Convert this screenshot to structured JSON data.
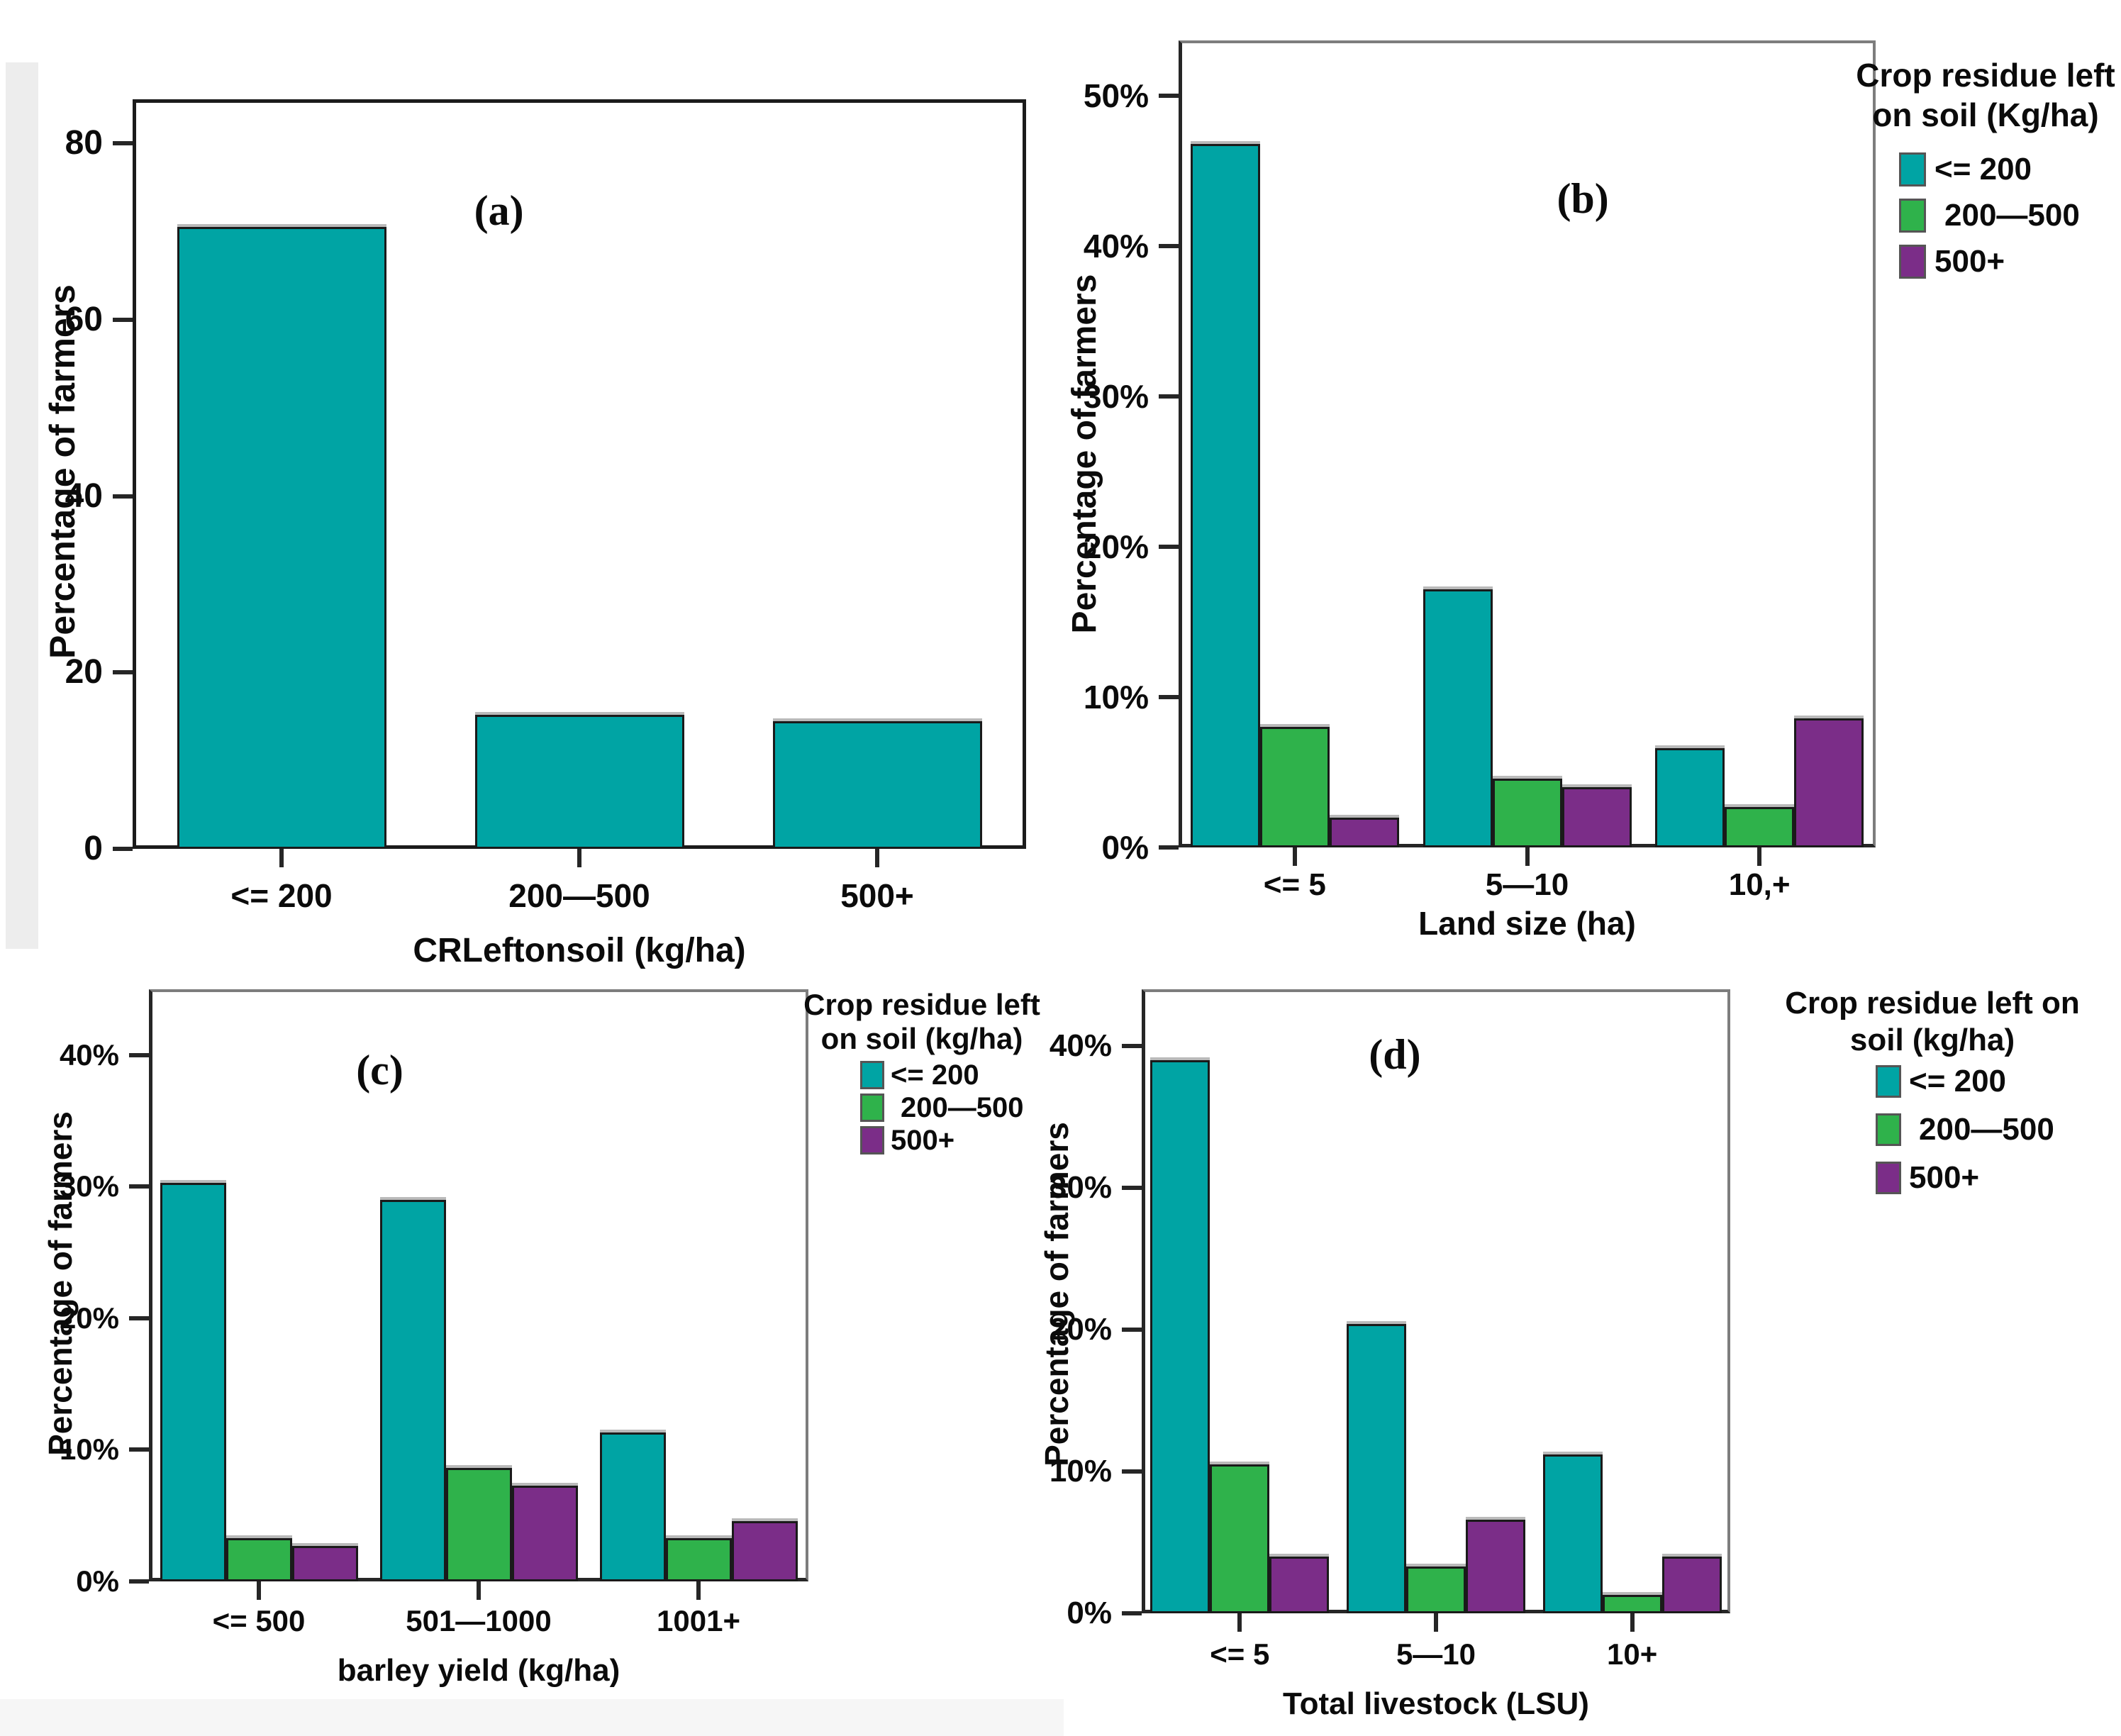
{
  "figure": {
    "background": "#ffffff",
    "palette": {
      "teal": "#00A4A4",
      "green": "#2FB24B",
      "purple": "#7B2D88",
      "bar_border": "#1a1a1a",
      "text": "#0b0b0b"
    }
  },
  "chart_data": [
    {
      "id": "a",
      "panel_label": "(a)",
      "type": "bar",
      "title": "",
      "ylabel": "Percentage of farmers",
      "xlabel": "CRLeftonsoil (kg/ha)",
      "categories": [
        "<= 200",
        "200—500",
        "500+"
      ],
      "series": [
        {
          "name": "<= 200",
          "color": "teal",
          "values": [
            70.5,
            15.2,
            14.5
          ]
        }
      ],
      "y_ticks": [
        0,
        20,
        40,
        60,
        80
      ],
      "y_suffix": "",
      "ylim": [
        0,
        85
      ],
      "grid": false,
      "legend": null
    },
    {
      "id": "b",
      "panel_label": "(b)",
      "type": "bar",
      "title": "",
      "ylabel": "Percentage of farmers",
      "xlabel": "Land size (ha)",
      "categories": [
        "<= 5",
        "5—10",
        "10,+"
      ],
      "series": [
        {
          "name": "<= 200",
          "color": "teal",
          "values": [
            46.8,
            17.2,
            6.6
          ]
        },
        {
          "name": "200—500",
          "color": "green",
          "values": [
            8.0,
            4.6,
            2.7
          ]
        },
        {
          "name": "500+",
          "color": "purple",
          "values": [
            2.0,
            4.0,
            8.6
          ]
        }
      ],
      "y_ticks": [
        0,
        10,
        20,
        30,
        40,
        50
      ],
      "y_suffix": "%",
      "ylim": [
        0,
        53.7
      ],
      "grid": false,
      "legend": {
        "title_lines": [
          "Crop residue left",
          "on soil (Kg/ha)"
        ],
        "entries": [
          "<= 200",
          "200—500",
          "500+"
        ],
        "position": "right"
      }
    },
    {
      "id": "c",
      "panel_label": "(c)",
      "type": "bar",
      "title": "",
      "ylabel": "Percentage of farmers",
      "xlabel": "barley yield (kg/ha)",
      "categories": [
        "<= 500",
        "501—1000",
        "1001+"
      ],
      "series": [
        {
          "name": "<= 200",
          "color": "teal",
          "values": [
            30.3,
            29.0,
            11.3
          ]
        },
        {
          "name": "200—500",
          "color": "green",
          "values": [
            3.3,
            8.6,
            3.3
          ]
        },
        {
          "name": "500+",
          "color": "purple",
          "values": [
            2.7,
            7.3,
            4.6
          ]
        }
      ],
      "y_ticks": [
        0,
        10,
        20,
        30,
        40
      ],
      "y_suffix": "%",
      "ylim": [
        0,
        45
      ],
      "grid": false,
      "legend": {
        "title_lines": [
          "Crop residue left",
          "on soil (kg/ha)"
        ],
        "entries": [
          "<= 200",
          "200—500",
          "500+"
        ],
        "position": "right"
      }
    },
    {
      "id": "d",
      "panel_label": "(d)",
      "type": "bar",
      "title": "",
      "ylabel": "Percentage of farmers",
      "xlabel": "Total livestock (LSU)",
      "categories": [
        "<= 5",
        "5—10",
        "10+"
      ],
      "series": [
        {
          "name": "<= 200",
          "color": "teal",
          "values": [
            39.0,
            20.4,
            11.2
          ]
        },
        {
          "name": "200—500",
          "color": "green",
          "values": [
            10.5,
            3.3,
            1.3
          ]
        },
        {
          "name": "500+",
          "color": "purple",
          "values": [
            4.0,
            6.6,
            4.0
          ]
        }
      ],
      "y_ticks": [
        0,
        10,
        20,
        30,
        40
      ],
      "y_suffix": "%",
      "ylim": [
        0,
        44
      ],
      "grid": false,
      "legend": {
        "title_lines": [
          "Crop residue left on",
          "soil (kg/ha)"
        ],
        "entries": [
          "<= 200",
          "200—500",
          "500+"
        ],
        "position": "right"
      }
    }
  ]
}
